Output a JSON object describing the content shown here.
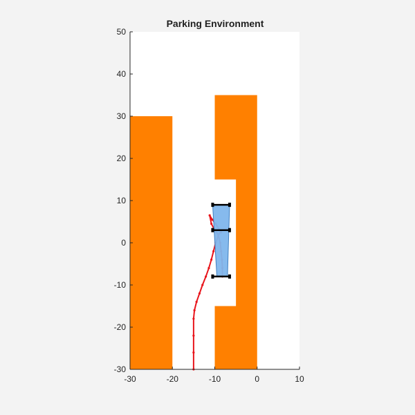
{
  "chart_data": {
    "type": "scatter",
    "title": "Parking Environment",
    "xlabel": "",
    "ylabel": "",
    "xlim": [
      -30,
      10
    ],
    "ylim": [
      -30,
      50
    ],
    "xticks": [
      -30,
      -20,
      -10,
      0,
      10
    ],
    "yticks": [
      -30,
      -20,
      -10,
      0,
      10,
      20,
      30,
      40,
      50
    ],
    "xtick_labels": [
      "-30",
      "-20",
      "-10",
      "0",
      "10"
    ],
    "ytick_labels": [
      "-30",
      "-20",
      "-10",
      "0",
      "10",
      "20",
      "30",
      "40",
      "50"
    ],
    "grid": false,
    "obstacles": [
      {
        "x": [
          -30,
          -20
        ],
        "y": [
          -30,
          30
        ]
      },
      {
        "x": [
          -10,
          0
        ],
        "y": [
          15,
          35
        ]
      },
      {
        "x": [
          -5,
          0
        ],
        "y": [
          -15,
          15
        ]
      },
      {
        "x": [
          -10,
          0
        ],
        "y": [
          -30,
          -15
        ]
      }
    ],
    "obstacle_color": "#ff8000",
    "vehicle": {
      "body": [
        [
          -10.5,
          9
        ],
        [
          -6.5,
          9
        ],
        [
          -7,
          -8
        ],
        [
          -9.5,
          -8
        ]
      ],
      "axles": [
        {
          "y": 9,
          "x": [
            -10.5,
            -6.5
          ]
        },
        {
          "y": 3,
          "x": [
            -10.5,
            -6.5
          ]
        },
        {
          "y": -8,
          "x": [
            -10.5,
            -6.5
          ]
        }
      ],
      "body_color": "#7fb6ec",
      "edge_color": "#3f7fc0",
      "axle_color": "#000000"
    },
    "path": {
      "color": "#e8141b",
      "points": [
        [
          -15,
          -30
        ],
        [
          -15,
          -26
        ],
        [
          -15,
          -22
        ],
        [
          -15,
          -18
        ],
        [
          -14.8,
          -16
        ],
        [
          -14.3,
          -14
        ],
        [
          -13.6,
          -12
        ],
        [
          -12.9,
          -10
        ],
        [
          -12.1,
          -8
        ],
        [
          -11.4,
          -6
        ],
        [
          -10.8,
          -4
        ],
        [
          -10.3,
          -2
        ],
        [
          -9.8,
          0
        ],
        [
          -9.2,
          1.5
        ],
        [
          -8.6,
          2.8
        ],
        [
          -8.5,
          2.5
        ],
        [
          -9.8,
          4.5
        ],
        [
          -10.6,
          5.5
        ],
        [
          -11.2,
          6.5
        ],
        [
          -10.8,
          4.5
        ],
        [
          -10,
          3
        ],
        [
          -9.2,
          2
        ],
        [
          -8.7,
          0
        ],
        [
          -8.5,
          -2
        ],
        [
          -8.3,
          -4
        ],
        [
          -8.2,
          -6
        ],
        [
          -8.2,
          -8
        ]
      ]
    }
  }
}
